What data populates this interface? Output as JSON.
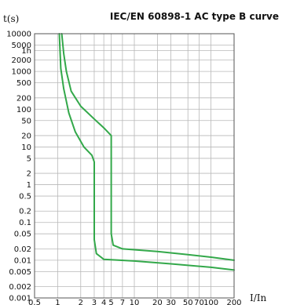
{
  "chart_data": {
    "type": "line",
    "title": "IEC/EN 60898-1 AC type B curve",
    "ylabel": "t(s)",
    "xlabel": "I/In",
    "x_scale": "log",
    "y_scale": "log",
    "xlim": [
      0.5,
      200
    ],
    "ylim": [
      0.001,
      10000
    ],
    "grid": true,
    "x_ticks": [
      {
        "v": 0.5,
        "label": "0.5"
      },
      {
        "v": 1,
        "label": "1"
      },
      {
        "v": 2,
        "label": "2"
      },
      {
        "v": 3,
        "label": "3"
      },
      {
        "v": 4,
        "label": "4"
      },
      {
        "v": 5,
        "label": "5"
      },
      {
        "v": 7,
        "label": "7"
      },
      {
        "v": 10,
        "label": "10"
      },
      {
        "v": 20,
        "label": "20"
      },
      {
        "v": 30,
        "label": "30"
      },
      {
        "v": 50,
        "label": "50"
      },
      {
        "v": 70,
        "label": "70"
      },
      {
        "v": 100,
        "label": "100"
      },
      {
        "v": 200,
        "label": "200"
      }
    ],
    "y_ticks": [
      {
        "v": 10000,
        "label": "10000"
      },
      {
        "v": 5000,
        "label": "5000"
      },
      {
        "v": 3600,
        "label": "1h"
      },
      {
        "v": 2000,
        "label": "2000"
      },
      {
        "v": 1000,
        "label": "1000"
      },
      {
        "v": 500,
        "label": "500"
      },
      {
        "v": 200,
        "label": "200"
      },
      {
        "v": 100,
        "label": "100"
      },
      {
        "v": 50,
        "label": "50"
      },
      {
        "v": 20,
        "label": "20"
      },
      {
        "v": 10,
        "label": "10"
      },
      {
        "v": 5,
        "label": "5"
      },
      {
        "v": 2,
        "label": "2"
      },
      {
        "v": 1,
        "label": "1"
      },
      {
        "v": 0.5,
        "label": "0.5"
      },
      {
        "v": 0.2,
        "label": "0.2"
      },
      {
        "v": 0.1,
        "label": "0.1"
      },
      {
        "v": 0.05,
        "label": "0.05"
      },
      {
        "v": 0.02,
        "label": "0.02"
      },
      {
        "v": 0.01,
        "label": "0.01"
      },
      {
        "v": 0.005,
        "label": "0.005"
      },
      {
        "v": 0.002,
        "label": "0.002"
      },
      {
        "v": 0.001,
        "label": "0.001"
      }
    ],
    "series": [
      {
        "color": "#33a84a",
        "points": [
          [
            1.13,
            10000
          ],
          [
            1.2,
            3000
          ],
          [
            1.3,
            1000
          ],
          [
            1.5,
            300
          ],
          [
            2,
            120
          ],
          [
            3,
            55
          ],
          [
            4,
            32
          ],
          [
            5,
            20
          ],
          [
            5,
            0.05
          ],
          [
            5.3,
            0.025
          ],
          [
            7,
            0.02
          ],
          [
            20,
            0.017
          ],
          [
            50,
            0.014
          ],
          [
            100,
            0.012
          ],
          [
            200,
            0.01
          ]
        ]
      },
      {
        "color": "#33a84a",
        "points": [
          [
            1.05,
            10000
          ],
          [
            1.1,
            1200
          ],
          [
            1.2,
            350
          ],
          [
            1.4,
            80
          ],
          [
            1.7,
            25
          ],
          [
            2.2,
            10
          ],
          [
            2.8,
            6
          ],
          [
            3,
            4
          ],
          [
            3,
            0.035
          ],
          [
            3.2,
            0.015
          ],
          [
            4,
            0.0105
          ],
          [
            10,
            0.0095
          ],
          [
            30,
            0.008
          ],
          [
            100,
            0.0065
          ],
          [
            200,
            0.0055
          ]
        ]
      }
    ]
  }
}
